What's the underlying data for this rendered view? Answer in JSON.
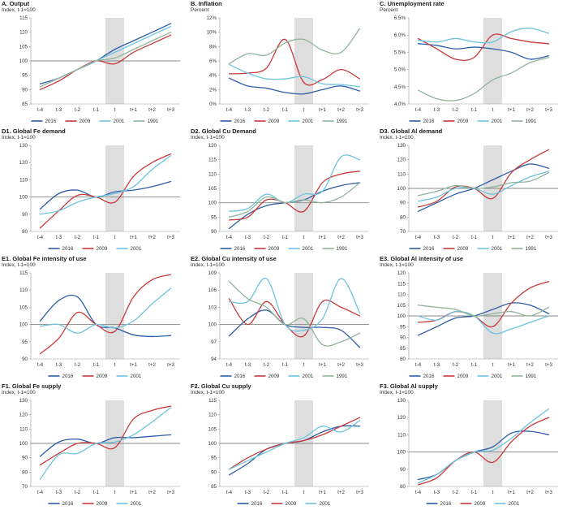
{
  "colors": {
    "2016": "#2e5ea8",
    "2009": "#c9393a",
    "2001": "#6ec3df",
    "1991": "#8fb49a",
    "ref": "#888888",
    "shade": "#dedede",
    "axis": "#999999"
  },
  "chart_data": [
    {
      "id": "A",
      "type": "line",
      "title": "A. Output",
      "subtitle": "Index, t-1=100",
      "x": [
        "t-4",
        "t-3",
        "t-2",
        "t-1",
        "t",
        "t+1",
        "t+2",
        "t+3"
      ],
      "ylim": [
        85,
        115
      ],
      "yticks": [
        85,
        90,
        95,
        100,
        105,
        110,
        115
      ],
      "yfmt": "int",
      "ref": 100,
      "series": [
        {
          "name": "2016",
          "values": [
            92,
            94,
            97,
            100,
            104,
            107,
            110,
            113
          ]
        },
        {
          "name": "2009",
          "values": [
            90,
            93,
            97,
            100,
            99,
            103,
            106,
            109
          ]
        },
        {
          "name": "2001",
          "values": [
            91,
            94,
            97,
            100,
            103,
            106,
            109,
            112
          ]
        },
        {
          "name": "1991",
          "values": [
            91,
            94,
            97,
            100,
            101,
            104,
            107,
            110
          ]
        }
      ]
    },
    {
      "id": "B",
      "type": "line",
      "title": "B. Inflation",
      "subtitle": "Percent",
      "x": [
        "t-4",
        "t-3",
        "t-2",
        "t-1",
        "t",
        "t+1",
        "t+2",
        "t+3"
      ],
      "ylim": [
        0,
        12
      ],
      "yticks": [
        0,
        2,
        4,
        6,
        8,
        10,
        12
      ],
      "yfmt": "pct0",
      "ref": null,
      "series": [
        {
          "name": "2016",
          "values": [
            3.6,
            2.5,
            2.2,
            1.6,
            1.4,
            2.0,
            2.5,
            1.8
          ]
        },
        {
          "name": "2009",
          "values": [
            4.2,
            4.3,
            5.0,
            9.0,
            3.0,
            3.4,
            4.8,
            3.5
          ]
        },
        {
          "name": "2001",
          "values": [
            5.5,
            4.3,
            3.5,
            3.5,
            3.8,
            2.8,
            2.7,
            2.4
          ]
        },
        {
          "name": "1991",
          "values": [
            5.6,
            7.0,
            6.8,
            8.5,
            9.0,
            7.5,
            7.2,
            10.5
          ]
        }
      ]
    },
    {
      "id": "C",
      "type": "line",
      "title": "C. Unemployment rate",
      "subtitle": "Percent",
      "x": [
        "t-4",
        "t-3",
        "t-2",
        "t-1",
        "t",
        "t+1",
        "t+2",
        "t+3"
      ],
      "ylim": [
        4.0,
        6.5
      ],
      "yticks": [
        4.0,
        4.5,
        5.0,
        5.5,
        6.0,
        6.5
      ],
      "yfmt": "pct1",
      "ref": null,
      "series": [
        {
          "name": "2016",
          "values": [
            5.75,
            5.7,
            5.6,
            5.65,
            5.6,
            5.5,
            5.3,
            5.4
          ]
        },
        {
          "name": "2009",
          "values": [
            5.9,
            5.6,
            5.3,
            5.35,
            6.0,
            5.9,
            5.8,
            5.75
          ]
        },
        {
          "name": "2001",
          "values": [
            5.85,
            5.8,
            5.9,
            5.8,
            5.8,
            6.1,
            6.2,
            6.05
          ]
        },
        {
          "name": "1991",
          "values": [
            4.4,
            4.15,
            4.1,
            4.3,
            4.7,
            4.9,
            5.2,
            5.35
          ]
        }
      ]
    },
    {
      "id": "D1",
      "type": "line",
      "title": "D1. Global Fe demand",
      "subtitle": "Index, t-1=100",
      "x": [
        "t-4",
        "t-3",
        "t-2",
        "t-1",
        "t",
        "t+1",
        "t+2",
        "t+3"
      ],
      "ylim": [
        80,
        130
      ],
      "yticks": [
        80,
        90,
        100,
        110,
        120,
        130
      ],
      "yfmt": "int",
      "ref": 100,
      "series": [
        {
          "name": "2016",
          "values": [
            93,
            102,
            104,
            100,
            103,
            104,
            106,
            109
          ]
        },
        {
          "name": "2009",
          "values": [
            82,
            92,
            101,
            100,
            97,
            112,
            120,
            125
          ]
        },
        {
          "name": "2001",
          "values": [
            90,
            92,
            97,
            100,
            102,
            106,
            116,
            124
          ]
        }
      ]
    },
    {
      "id": "D2",
      "type": "line",
      "title": "D2. Global Cu Demand",
      "subtitle": "Index, t-1=100",
      "x": [
        "t-4",
        "t-3",
        "t-2",
        "t-1",
        "t",
        "t+1",
        "t+2",
        "t+3"
      ],
      "ylim": [
        90,
        120
      ],
      "yticks": [
        90,
        95,
        100,
        105,
        110,
        115,
        120
      ],
      "yfmt": "int",
      "ref": 100,
      "series": [
        {
          "name": "2016",
          "values": [
            91,
            96,
            99,
            100,
            101,
            104,
            106,
            107
          ]
        },
        {
          "name": "2009",
          "values": [
            94,
            95,
            101,
            100,
            97,
            107,
            110,
            111
          ]
        },
        {
          "name": "2001",
          "values": [
            97,
            98,
            103,
            100,
            103,
            104,
            116,
            115
          ]
        },
        {
          "name": "1991",
          "values": [
            95,
            97,
            102,
            100,
            101,
            100,
            102,
            107
          ]
        }
      ]
    },
    {
      "id": "D3",
      "type": "line",
      "title": "D3. Global Al demand",
      "subtitle": "Index, t-1=100",
      "x": [
        "t-4",
        "t-3",
        "t-2",
        "t-1",
        "t",
        "t+1",
        "t+2",
        "t+3"
      ],
      "ylim": [
        70,
        130
      ],
      "yticks": [
        70,
        80,
        90,
        100,
        110,
        120,
        130
      ],
      "yfmt": "int",
      "ref": 100,
      "series": [
        {
          "name": "2016",
          "values": [
            84,
            90,
            96,
            100,
            106,
            112,
            117,
            114
          ]
        },
        {
          "name": "2009",
          "values": [
            87,
            91,
            101,
            100,
            93,
            111,
            120,
            127
          ]
        },
        {
          "name": "2001",
          "values": [
            91,
            94,
            100,
            100,
            96,
            102,
            108,
            112
          ]
        },
        {
          "name": "1991",
          "values": [
            95,
            98,
            102,
            100,
            101,
            104,
            105,
            111
          ]
        }
      ]
    },
    {
      "id": "E1",
      "type": "line",
      "title": "E1. Global Fe intensity of use",
      "subtitle": "Index, t-1=100",
      "x": [
        "t-4",
        "t-3",
        "t-2",
        "t-1",
        "t",
        "t+1",
        "t+2",
        "t+3"
      ],
      "ylim": [
        90,
        115
      ],
      "yticks": [
        90,
        95,
        100,
        105,
        110,
        115
      ],
      "yfmt": "int",
      "ref": 100,
      "series": [
        {
          "name": "2016",
          "values": [
            101,
            107,
            108,
            100,
            99,
            97,
            96.5,
            96.8
          ]
        },
        {
          "name": "2009",
          "values": [
            91.5,
            96,
            103.5,
            100,
            98,
            108,
            113,
            114.5
          ]
        },
        {
          "name": "2001",
          "values": [
            99.5,
            100,
            97.5,
            100,
            99,
            101,
            106,
            110.5
          ]
        }
      ]
    },
    {
      "id": "E2",
      "type": "line",
      "title": "E2. Global Cu intensity of use",
      "subtitle": "Index, t-1=100",
      "x": [
        "t-4",
        "t-3",
        "t-2",
        "t-1",
        "t",
        "t+1",
        "t+2",
        "t+3"
      ],
      "ylim": [
        94,
        109
      ],
      "yticks": [
        94,
        97,
        100,
        103,
        106,
        109
      ],
      "yfmt": "int",
      "ref": 100,
      "series": [
        {
          "name": "2016",
          "values": [
            98,
            101,
            102.5,
            100,
            99.5,
            99.5,
            99,
            96
          ]
        },
        {
          "name": "2009",
          "values": [
            104.5,
            100,
            104,
            100,
            98,
            104,
            103,
            101.5
          ]
        },
        {
          "name": "2001",
          "values": [
            104,
            104,
            108,
            100,
            99,
            101,
            108,
            102
          ]
        },
        {
          "name": "1991",
          "values": [
            107.5,
            104.5,
            103,
            100,
            101,
            96.5,
            97,
            98.5
          ]
        }
      ]
    },
    {
      "id": "E3",
      "type": "line",
      "title": "E3. Global Al intensity of use",
      "subtitle": "Index, t-1=100",
      "x": [
        "t-4",
        "t-3",
        "t-2",
        "t-1",
        "t",
        "t+1",
        "t+2",
        "t+3"
      ],
      "ylim": [
        80,
        120
      ],
      "yticks": [
        80,
        85,
        90,
        95,
        100,
        105,
        110,
        115,
        120
      ],
      "yfmt": "int",
      "ref": 100,
      "series": [
        {
          "name": "2016",
          "values": [
            91,
            95,
            99,
            100,
            103,
            106,
            105,
            101
          ]
        },
        {
          "name": "2009",
          "values": [
            97,
            98,
            102,
            100,
            95,
            106,
            113,
            116
          ]
        },
        {
          "name": "2001",
          "values": [
            100,
            98,
            102,
            100,
            92,
            94,
            97,
            100
          ]
        },
        {
          "name": "1991",
          "values": [
            105,
            104,
            103,
            100,
            101,
            102,
            100,
            104
          ]
        }
      ]
    },
    {
      "id": "F1",
      "type": "line",
      "title": "F1. Global Fe supply",
      "subtitle": "Index, t-1=100",
      "x": [
        "t-4",
        "t-3",
        "t-2",
        "t-1",
        "t",
        "t+1",
        "t+2",
        "t+3"
      ],
      "ylim": [
        70,
        130
      ],
      "yticks": [
        70,
        80,
        90,
        100,
        110,
        120,
        130
      ],
      "yfmt": "int",
      "ref": 100,
      "series": [
        {
          "name": "2016",
          "values": [
            91,
            101,
            103,
            100,
            104,
            104,
            105,
            106
          ]
        },
        {
          "name": "2009",
          "values": [
            85,
            93,
            100,
            100,
            97,
            117,
            123,
            126
          ]
        },
        {
          "name": "2001",
          "values": [
            75,
            92,
            93,
            100,
            101,
            106,
            115,
            125
          ]
        }
      ]
    },
    {
      "id": "F2",
      "type": "line",
      "title": "F2. Global Cu supply",
      "subtitle": "Index, t-1=100",
      "x": [
        "t-4",
        "t-3",
        "t-2",
        "t-1",
        "t",
        "t+1",
        "t+2",
        "t+3"
      ],
      "ylim": [
        85,
        115
      ],
      "yticks": [
        85,
        90,
        95,
        100,
        105,
        110,
        115
      ],
      "yfmt": "int",
      "ref": 100,
      "series": [
        {
          "name": "2016",
          "values": [
            89,
            93,
            98,
            100,
            101,
            104,
            106,
            106
          ]
        },
        {
          "name": "2009",
          "values": [
            91,
            95,
            98,
            100,
            101,
            103,
            106,
            109
          ]
        },
        {
          "name": "2001",
          "values": [
            91,
            94,
            97,
            100,
            102,
            106,
            104,
            108
          ]
        }
      ]
    },
    {
      "id": "F3",
      "type": "line",
      "title": "F3. Global Al supply",
      "subtitle": "Index, t-1=100",
      "x": [
        "t-4",
        "t-3",
        "t-2",
        "t-1",
        "t",
        "t+1",
        "t+2",
        "t+3"
      ],
      "ylim": [
        80,
        130
      ],
      "yticks": [
        80,
        90,
        100,
        110,
        120,
        130
      ],
      "yfmt": "int",
      "ref": 100,
      "series": [
        {
          "name": "2016",
          "values": [
            84,
            87,
            95,
            100,
            103,
            111,
            112,
            110
          ]
        },
        {
          "name": "2009",
          "values": [
            81,
            85,
            95,
            100,
            94,
            106,
            115,
            120
          ]
        },
        {
          "name": "2001",
          "values": [
            82,
            87,
            95,
            100,
            101,
            108,
            117,
            125
          ]
        }
      ]
    }
  ]
}
